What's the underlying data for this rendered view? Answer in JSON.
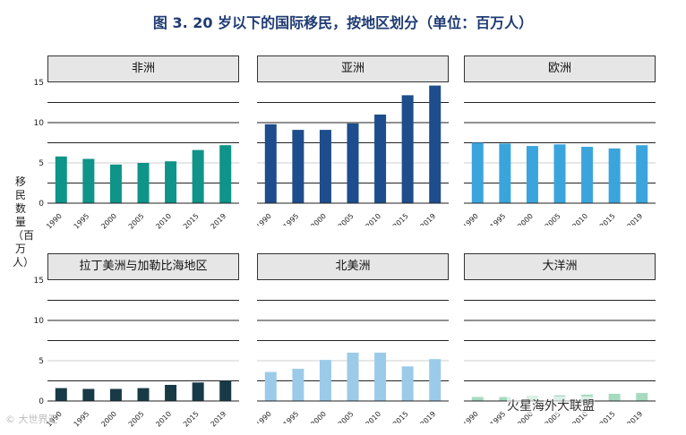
{
  "title": "图 3. 20  岁以下的国际移民，按地区划分（单位：百万人）",
  "ylabel": "移民数量（百万人）",
  "watermark_left": "© 大世界汇",
  "watermark_right": "火星海外大联盟",
  "colors": {
    "africa": "#0e9488",
    "asia": "#1d4d8c",
    "europe": "#3aa5dd",
    "latin_america": "#183a46",
    "north_america": "#9bcbe9",
    "oceania": "#a6dbc0"
  },
  "chart_data": [
    {
      "type": "bar",
      "title": "非洲",
      "color_key": "africa",
      "categories": [
        "1990",
        "1995",
        "2000",
        "2005",
        "2010",
        "2015",
        "2019"
      ],
      "values": [
        5.8,
        5.5,
        4.8,
        5.0,
        5.2,
        6.6,
        7.2
      ],
      "ylim": [
        0,
        15
      ],
      "yticks": [
        0,
        5,
        10,
        15
      ],
      "show_yticks": true
    },
    {
      "type": "bar",
      "title": "亚洲",
      "color_key": "asia",
      "categories": [
        "1990",
        "1995",
        "2000",
        "2005",
        "2010",
        "2015",
        "2019"
      ],
      "values": [
        9.8,
        9.1,
        9.1,
        9.9,
        11.0,
        13.4,
        14.6
      ],
      "ylim": [
        0,
        15
      ],
      "yticks": [
        0,
        5,
        10,
        15
      ],
      "show_yticks": false
    },
    {
      "type": "bar",
      "title": "欧洲",
      "color_key": "europe",
      "categories": [
        "1990",
        "1995",
        "2000",
        "2005",
        "2010",
        "2015",
        "2019"
      ],
      "values": [
        7.5,
        7.4,
        7.1,
        7.3,
        7.0,
        6.8,
        7.2
      ],
      "ylim": [
        0,
        15
      ],
      "yticks": [
        0,
        5,
        10,
        15
      ],
      "show_yticks": false
    },
    {
      "type": "bar",
      "title": "拉丁美洲与加勒比海地区",
      "color_key": "latin_america",
      "categories": [
        "1990",
        "1995",
        "2000",
        "2005",
        "2010",
        "2015",
        "2019"
      ],
      "values": [
        1.6,
        1.5,
        1.5,
        1.6,
        2.0,
        2.3,
        2.5
      ],
      "ylim": [
        0,
        15
      ],
      "yticks": [
        0,
        5,
        10,
        15
      ],
      "show_yticks": true
    },
    {
      "type": "bar",
      "title": "北美洲",
      "color_key": "north_america",
      "categories": [
        "1990",
        "1995",
        "2000",
        "2005",
        "2010",
        "2015",
        "2019"
      ],
      "values": [
        3.6,
        4.0,
        5.1,
        6.0,
        6.0,
        4.3,
        5.2
      ],
      "ylim": [
        0,
        15
      ],
      "yticks": [
        0,
        5,
        10,
        15
      ],
      "show_yticks": false
    },
    {
      "type": "bar",
      "title": "大洋洲",
      "color_key": "oceania",
      "categories": [
        "1990",
        "1995",
        "2000",
        "2005",
        "2010",
        "2015",
        "2019"
      ],
      "values": [
        0.5,
        0.5,
        0.6,
        0.7,
        0.8,
        0.9,
        1.0
      ],
      "ylim": [
        0,
        15
      ],
      "yticks": [
        0,
        5,
        10,
        15
      ],
      "show_yticks": false
    }
  ]
}
